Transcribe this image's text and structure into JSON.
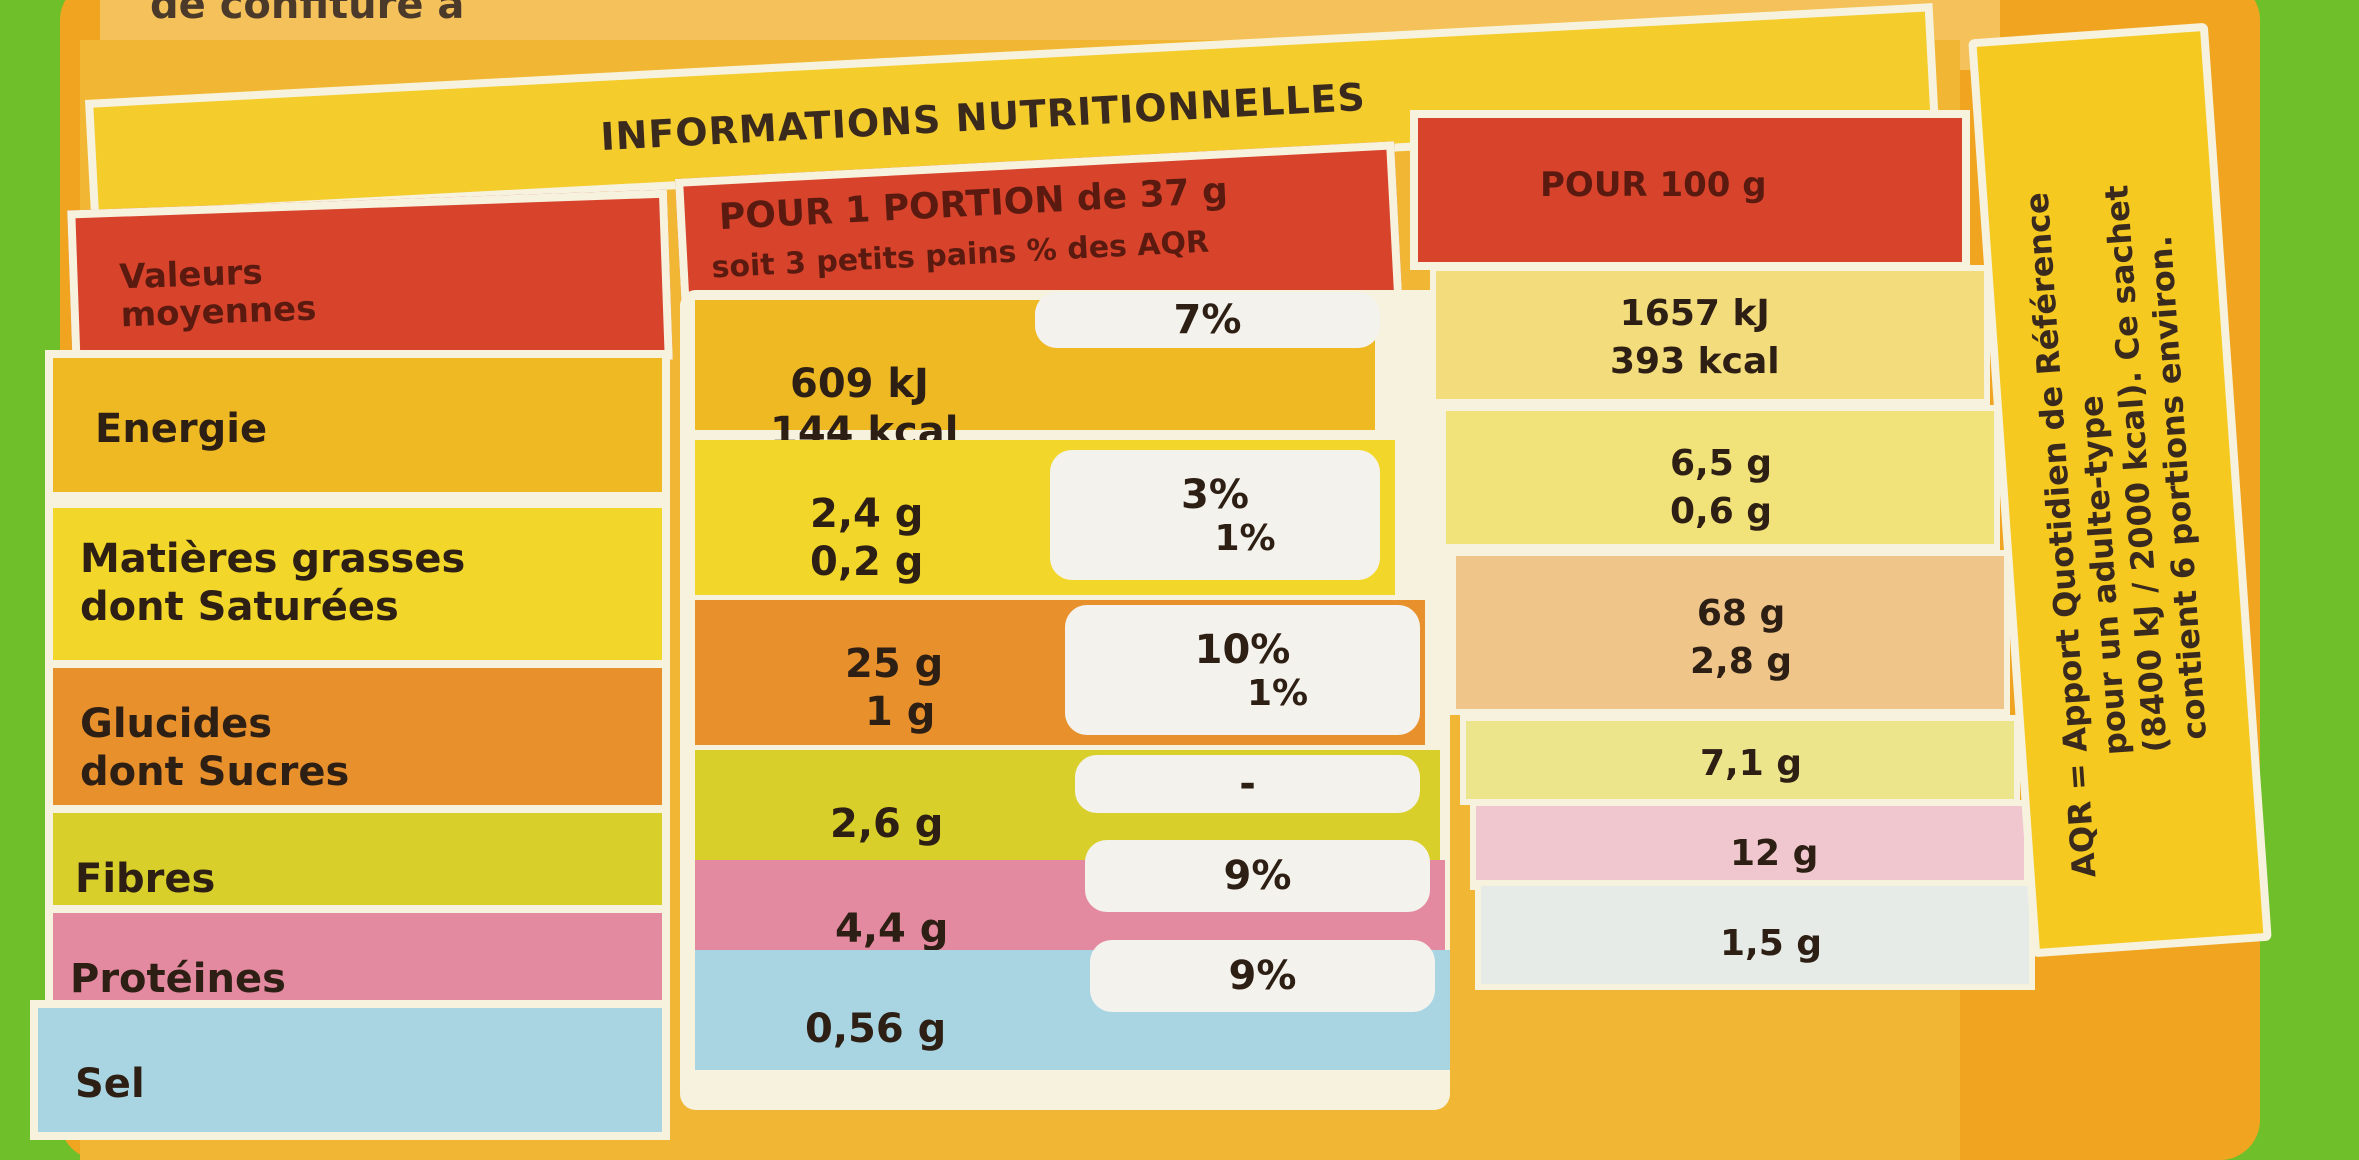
{
  "top_text": "de confiture à",
  "title": "INFORMATIONS NUTRITIONNELLES",
  "header": {
    "label_line1": "Valeurs",
    "label_line2": "moyennes",
    "portion_line1": "POUR 1 PORTION de 37 g",
    "portion_line2": "soit 3 petits pains  % des AQR",
    "per100": "POUR 100 g"
  },
  "rows": [
    {
      "label1": "Energie",
      "label2": "",
      "portion1": "609 kJ",
      "portion2": "144 kcal",
      "pct1": "7%",
      "pct2": "",
      "per100_1": "1657 kJ",
      "per100_2": "393 kcal"
    },
    {
      "label1": "Matières grasses",
      "label2": "dont Saturées",
      "portion1": "2,4 g",
      "portion2": "0,2 g",
      "pct1": "3%",
      "pct2": "1%",
      "per100_1": "6,5 g",
      "per100_2": "0,6 g"
    },
    {
      "label1": "Glucides",
      "label2": "dont Sucres",
      "portion1": "25 g",
      "portion2": "1 g",
      "pct1": "10%",
      "pct2": "1%",
      "per100_1": "68 g",
      "per100_2": "2,8 g"
    },
    {
      "label1": "Fibres",
      "label2": "",
      "portion1": "2,6 g",
      "portion2": "",
      "pct1": "-",
      "pct2": "",
      "per100_1": "7,1 g",
      "per100_2": ""
    },
    {
      "label1": "Protéines",
      "label2": "",
      "portion1": "4,4 g",
      "portion2": "",
      "pct1": "9%",
      "pct2": "",
      "per100_1": "12 g",
      "per100_2": ""
    },
    {
      "label1": "Sel",
      "label2": "",
      "portion1": "0,56 g",
      "portion2": "",
      "pct1": "9%",
      "pct2": "",
      "per100_1": "1,5 g",
      "per100_2": ""
    }
  ],
  "side_note": {
    "line1": "AQR = Apport Quotidien de Référence",
    "line2": "pour un adulte-type",
    "line3": "(8400 kJ / 2000 kcal). Ce sachet",
    "line4": "contient 6 portions environ."
  },
  "colors": {
    "header_red": "#d8432b",
    "energy": "#efb924",
    "fat": "#f2d72a",
    "carbs": "#e8902c",
    "fibre": "#d9cf2a",
    "protein": "#e48aa0",
    "salt": "#a9d5e3"
  }
}
